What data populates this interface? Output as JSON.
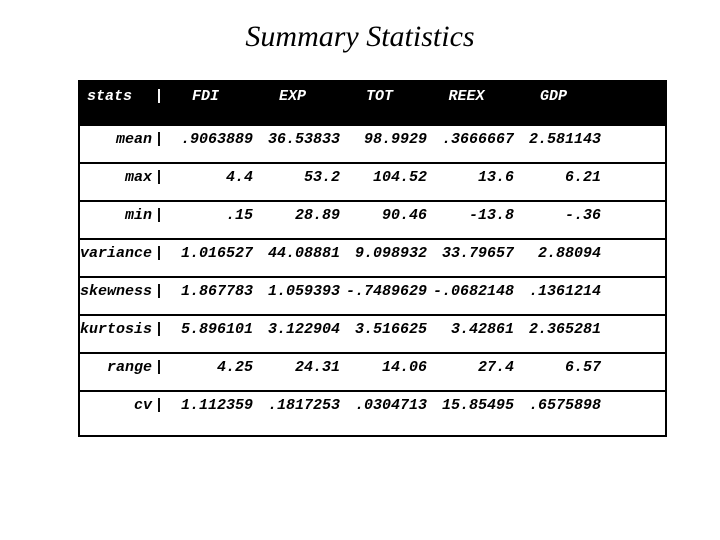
{
  "slide": {
    "title": "Summary Statistics"
  },
  "table": {
    "pipe_glyph": "|",
    "header": {
      "stat_column_label": "stats",
      "columns": [
        "FDI",
        "EXP",
        "TOT",
        "REEX",
        "GDP"
      ]
    },
    "rows": [
      {
        "label": "mean",
        "values": [
          ".9063889",
          "36.53833",
          "98.9929",
          ".3666667",
          "2.581143"
        ]
      },
      {
        "label": "max",
        "values": [
          "4.4",
          "53.2",
          "104.52",
          "13.6",
          "6.21"
        ]
      },
      {
        "label": "min",
        "values": [
          ".15",
          "28.89",
          "90.46",
          "-13.8",
          "-.36"
        ]
      },
      {
        "label": "variance",
        "values": [
          "1.016527",
          "44.08881",
          "9.098932",
          "33.79657",
          "2.88094"
        ]
      },
      {
        "label": "skewness",
        "values": [
          "1.867783",
          "1.059393",
          "-.7489629",
          "-.0682148",
          ".1361214"
        ]
      },
      {
        "label": "kurtosis",
        "values": [
          "5.896101",
          "3.122904",
          "3.516625",
          "3.42861",
          "2.365281"
        ]
      },
      {
        "label": "range",
        "values": [
          "4.25",
          "24.31",
          "14.06",
          "27.4",
          "6.57"
        ]
      },
      {
        "label": "cv",
        "values": [
          "1.112359",
          ".1817253",
          ".0304713",
          "15.85495",
          ".6575898"
        ]
      }
    ]
  },
  "chart_data": {
    "type": "table",
    "title": "Summary Statistics",
    "columns": [
      "stats",
      "FDI",
      "EXP",
      "TOT",
      "REEX",
      "GDP"
    ],
    "rows": [
      [
        "mean",
        ".9063889",
        "36.53833",
        "98.9929",
        ".3666667",
        "2.581143"
      ],
      [
        "max",
        "4.4",
        "53.2",
        "104.52",
        "13.6",
        "6.21"
      ],
      [
        "min",
        ".15",
        "28.89",
        "90.46",
        "-13.8",
        "-.36"
      ],
      [
        "variance",
        "1.016527",
        "44.08881",
        "9.098932",
        "33.79657",
        "2.88094"
      ],
      [
        "skewness",
        "1.867783",
        "1.059393",
        "-.7489629",
        "-.0682148",
        ".1361214"
      ],
      [
        "kurtosis",
        "5.896101",
        "3.122904",
        "3.516625",
        "3.42861",
        "2.365281"
      ],
      [
        "range",
        "4.25",
        "24.31",
        "14.06",
        "27.4",
        "6.57"
      ],
      [
        "cv",
        "1.112359",
        ".1817253",
        ".0304713",
        "15.85495",
        ".6575898"
      ]
    ]
  }
}
